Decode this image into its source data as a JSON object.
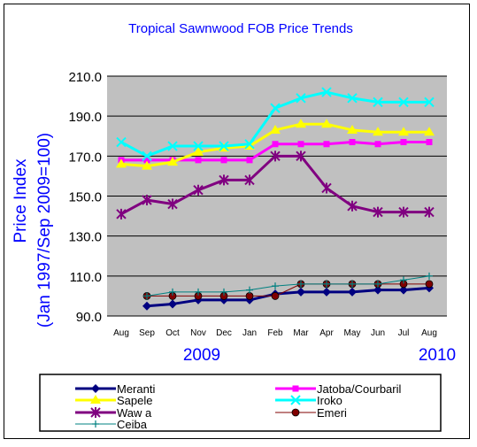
{
  "chart_data": {
    "type": "line",
    "title": "Tropical Sawnwood FOB Price Trends",
    "ylabel_line1": "Price Index",
    "ylabel_line2": "(Jan 1997/Sep 2009=100)",
    "categories": [
      "Aug",
      "Sep",
      "Oct",
      "Nov",
      "Dec",
      "Jan",
      "Feb",
      "Mar",
      "Apr",
      "May",
      "Jun",
      "Jul",
      "Aug"
    ],
    "year_labels": [
      "2009",
      "2010"
    ],
    "ylim": [
      90,
      210
    ],
    "yticks": [
      "90.0",
      "110.0",
      "130.0",
      "150.0",
      "170.0",
      "190.0",
      "210.0"
    ],
    "ytick_values": [
      90,
      110,
      130,
      150,
      170,
      190,
      210
    ],
    "grid": true,
    "legend_position": "bottom",
    "series": [
      {
        "name": "Meranti",
        "color": "#000080",
        "marker": "diamond",
        "values": [
          null,
          95,
          96,
          98,
          98,
          98,
          101,
          102,
          102,
          102,
          103,
          103,
          104
        ]
      },
      {
        "name": "Jatoba/Courbaril",
        "color": "#ff00ff",
        "marker": "square",
        "values": [
          168,
          168,
          168,
          168,
          168,
          168,
          176,
          176,
          176,
          177,
          176,
          177,
          177
        ]
      },
      {
        "name": "Sapele",
        "color": "#ffff00",
        "marker": "triangle",
        "values": [
          166,
          165,
          167,
          172,
          174,
          175,
          183,
          186,
          186,
          183,
          182,
          182,
          182
        ]
      },
      {
        "name": "Iroko",
        "color": "#00ffff",
        "marker": "x",
        "values": [
          177,
          170,
          175,
          175,
          175,
          176,
          194,
          199,
          202,
          199,
          197,
          197,
          197
        ]
      },
      {
        "name": "Waw a",
        "color": "#800080",
        "marker": "star",
        "values": [
          141,
          148,
          146,
          153,
          158,
          158,
          170,
          170,
          154,
          145,
          142,
          142,
          142
        ]
      },
      {
        "name": "Emeri",
        "color": "#800000",
        "marker": "circle",
        "values": [
          null,
          100,
          100,
          100,
          100,
          100,
          100,
          106,
          106,
          106,
          106,
          106,
          106
        ]
      },
      {
        "name": "Ceiba",
        "color": "#008080",
        "marker": "plus",
        "values": [
          null,
          100,
          102,
          102,
          102,
          103,
          105,
          106,
          106,
          106,
          106,
          108,
          110
        ]
      }
    ]
  },
  "colors": {
    "plot_background": "#c0c0c0",
    "chart_background": "#ffffff",
    "title_color": "#0000ff",
    "axis_label_color": "#0000ff"
  }
}
